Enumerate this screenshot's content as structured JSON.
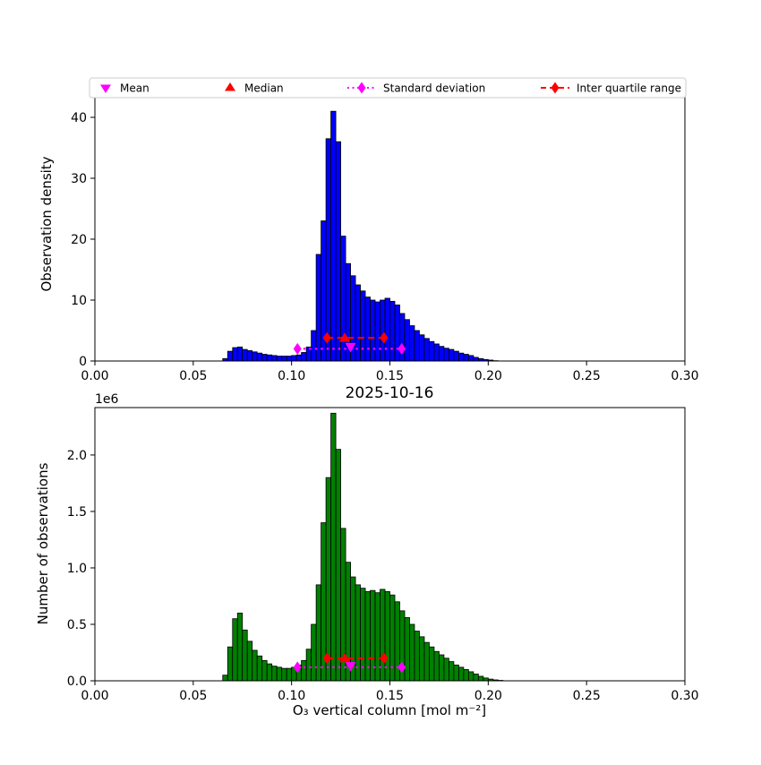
{
  "figure": {
    "background": "#ffffff"
  },
  "colors": {
    "histogram_top": "#0000ff",
    "histogram_bottom": "#008000",
    "edge": "#000000",
    "mean": "#ff00ff",
    "median": "#ff0000",
    "std": "#ff00ff",
    "iqr": "#ff0000"
  },
  "legend": {
    "items": [
      {
        "label": "Mean",
        "marker": "triangle-down",
        "color": "#ff00ff"
      },
      {
        "label": "Median",
        "marker": "triangle-up",
        "color": "#ff0000"
      },
      {
        "label": "Standard deviation",
        "marker": "diamond-dotted-line",
        "color": "#ff00ff"
      },
      {
        "label": "Inter quartile range",
        "marker": "diamond-dashed-line",
        "color": "#ff0000"
      }
    ]
  },
  "chart_data": [
    {
      "type": "bar",
      "name": "observation-density-histogram",
      "title": "",
      "xlabel": "",
      "ylabel": "Observation density",
      "xlim": [
        0.0,
        0.3
      ],
      "ylim": [
        0,
        45
      ],
      "grid": false,
      "bin_start": 0.065,
      "bin_width": 0.0025,
      "bar_color": "#0000ff",
      "edge_color": "#000000",
      "xticks": [
        0.0,
        0.05,
        0.1,
        0.15,
        0.2,
        0.25,
        0.3
      ],
      "xtick_labels": [
        "0.00",
        "0.05",
        "0.10",
        "0.15",
        "0.20",
        "0.25",
        "0.30"
      ],
      "yticks": [
        0,
        10,
        20,
        30,
        40
      ],
      "ytick_labels": [
        "0",
        "10",
        "20",
        "30",
        "40"
      ],
      "values": [
        0.4,
        1.6,
        2.2,
        2.3,
        1.9,
        1.7,
        1.5,
        1.3,
        1.1,
        1.0,
        0.9,
        0.8,
        0.8,
        0.8,
        0.9,
        1.0,
        1.4,
        2.3,
        5.0,
        17.5,
        23.0,
        36.5,
        41.0,
        36.0,
        20.5,
        16.0,
        14.0,
        12.5,
        11.5,
        10.5,
        10.0,
        9.7,
        10.0,
        10.3,
        9.8,
        9.2,
        7.8,
        6.8,
        5.8,
        5.0,
        4.3,
        3.7,
        3.2,
        2.8,
        2.4,
        2.1,
        1.9,
        1.6,
        1.3,
        1.1,
        0.9,
        0.6,
        0.4,
        0.25,
        0.15,
        0.05
      ],
      "markers": {
        "mean": {
          "x": 0.13,
          "y": 2.3,
          "color": "#ff00ff"
        },
        "median": {
          "x": 0.127,
          "y": 3.8,
          "color": "#ff0000"
        },
        "std": {
          "x1": 0.103,
          "x2": 0.156,
          "y": 2.0,
          "color": "#ff00ff"
        },
        "iqr": {
          "x1": 0.118,
          "x2": 0.147,
          "y": 3.8,
          "color": "#ff0000"
        }
      }
    },
    {
      "type": "bar",
      "name": "number-of-observations-histogram",
      "title": "2025-10-16",
      "xlabel": "O₃ vertical column [mol m⁻²]",
      "ylabel": "Number of observations",
      "offset_text": "1e6",
      "xlim": [
        0.0,
        0.3
      ],
      "ylim": [
        0,
        2.42
      ],
      "grid": false,
      "bin_start": 0.065,
      "bin_width": 0.0025,
      "bar_color": "#008000",
      "edge_color": "#000000",
      "xticks": [
        0.0,
        0.05,
        0.1,
        0.15,
        0.2,
        0.25,
        0.3
      ],
      "xtick_labels": [
        "0.00",
        "0.05",
        "0.10",
        "0.15",
        "0.20",
        "0.25",
        "0.30"
      ],
      "yticks": [
        0,
        0.5,
        1.0,
        1.5,
        2.0
      ],
      "ytick_labels": [
        "0.0",
        "0.5",
        "1.0",
        "1.5",
        "2.0"
      ],
      "values": [
        0.05,
        0.3,
        0.55,
        0.6,
        0.45,
        0.35,
        0.27,
        0.22,
        0.18,
        0.15,
        0.13,
        0.12,
        0.11,
        0.11,
        0.12,
        0.14,
        0.18,
        0.28,
        0.5,
        0.85,
        1.4,
        1.8,
        2.37,
        2.05,
        1.35,
        1.05,
        0.92,
        0.85,
        0.82,
        0.79,
        0.8,
        0.78,
        0.81,
        0.79,
        0.76,
        0.7,
        0.62,
        0.56,
        0.5,
        0.44,
        0.39,
        0.34,
        0.3,
        0.26,
        0.23,
        0.2,
        0.17,
        0.14,
        0.12,
        0.1,
        0.08,
        0.06,
        0.04,
        0.025,
        0.015,
        0.008,
        0.004
      ],
      "markers": {
        "mean": {
          "x": 0.13,
          "y": 0.13,
          "color": "#ff00ff"
        },
        "median": {
          "x": 0.127,
          "y": 0.2,
          "color": "#ff0000"
        },
        "std": {
          "x1": 0.103,
          "x2": 0.156,
          "y": 0.12,
          "color": "#ff00ff"
        },
        "iqr": {
          "x1": 0.118,
          "x2": 0.147,
          "y": 0.2,
          "color": "#ff0000"
        }
      }
    }
  ]
}
